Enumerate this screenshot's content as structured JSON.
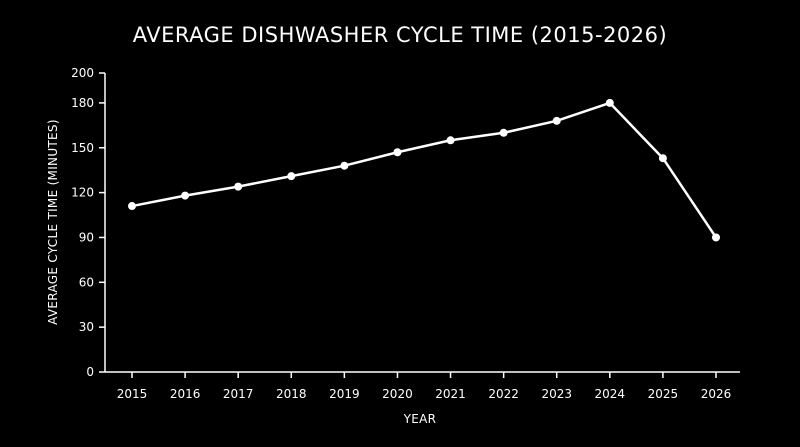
{
  "chart_data": {
    "type": "line",
    "title": "AVERAGE DISHWASHER CYCLE TIME (2015-2026)",
    "xlabel": "YEAR",
    "ylabel": "AVERAGE CYCLE TIME (MINUTES)",
    "x": [
      "2015",
      "2016",
      "2017",
      "2018",
      "2019",
      "2020",
      "2021",
      "2022",
      "2023",
      "2024",
      "2025",
      "2026"
    ],
    "series": [
      {
        "values": [
          111,
          118,
          124,
          131,
          138,
          147,
          155,
          160,
          168,
          180,
          143,
          90
        ]
      }
    ],
    "ylim": [
      0,
      200
    ],
    "yticks": [
      0,
      30,
      60,
      90,
      120,
      150,
      180,
      200
    ],
    "grid": false,
    "legend": "none",
    "colors": {
      "background": "#000000",
      "foreground": "#ffffff"
    }
  }
}
